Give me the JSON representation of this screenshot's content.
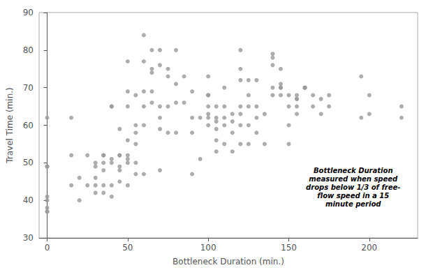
{
  "chart_data": {
    "type": "scatter",
    "xlabel": "Bottleneck Duration (min.)",
    "ylabel": "Travel Time (min.)",
    "xlim": [
      -5,
      230
    ],
    "ylim": [
      30,
      90
    ],
    "xticks": [
      0,
      50,
      100,
      150,
      200
    ],
    "yticks": [
      30,
      40,
      50,
      60,
      70,
      80,
      90
    ],
    "grid": false,
    "color": "#999999",
    "annotation": {
      "text": "Bottleneck Duration\nmeasured when speed\ndrops below 1/3 of free-\nflow speed in a 15\nminute period",
      "x": 190,
      "y": 49
    },
    "x": [
      0,
      0,
      0,
      0,
      0,
      0,
      0,
      0,
      15,
      15,
      15,
      20,
      20,
      25,
      25,
      30,
      30,
      30,
      30,
      30,
      35,
      35,
      35,
      35,
      35,
      35,
      40,
      40,
      40,
      40,
      40,
      40,
      45,
      45,
      45,
      45,
      45,
      45,
      50,
      50,
      50,
      50,
      50,
      50,
      50,
      50,
      55,
      55,
      55,
      55,
      55,
      55,
      60,
      60,
      60,
      60,
      60,
      60,
      65,
      65,
      65,
      65,
      65,
      70,
      70,
      70,
      70,
      70,
      70,
      75,
      75,
      75,
      75,
      80,
      80,
      80,
      80,
      85,
      85,
      90,
      90,
      90,
      90,
      95,
      95,
      100,
      100,
      100,
      100,
      100,
      100,
      100,
      105,
      105,
      105,
      105,
      105,
      105,
      110,
      110,
      110,
      110,
      110,
      115,
      115,
      115,
      115,
      120,
      120,
      120,
      120,
      120,
      120,
      120,
      125,
      125,
      125,
      125,
      125,
      130,
      130,
      130,
      130,
      135,
      135,
      140,
      140,
      140,
      140,
      140,
      145,
      145,
      145,
      145,
      145,
      150,
      150,
      150,
      150,
      155,
      155,
      155,
      155,
      155,
      160,
      160,
      160,
      165,
      165,
      170,
      170,
      175,
      175,
      195,
      195,
      200,
      200,
      220,
      220
    ],
    "values": [
      62,
      49,
      49,
      41,
      40,
      38,
      37,
      37,
      62,
      52,
      44,
      46,
      40,
      52,
      44,
      50,
      49,
      46,
      44,
      42,
      52,
      52,
      50,
      48,
      44,
      42,
      65,
      65,
      51,
      50,
      44,
      41,
      59,
      52,
      52,
      49,
      48,
      45,
      77,
      69,
      65,
      56,
      52,
      51,
      50,
      44,
      68,
      60,
      58,
      55,
      50,
      47,
      84,
      77,
      69,
      65,
      60,
      47,
      80,
      75,
      74,
      69,
      66,
      80,
      76,
      65,
      62,
      59,
      48,
      75,
      73,
      65,
      58,
      80,
      71,
      66,
      58,
      73,
      66,
      69,
      62,
      58,
      47,
      62,
      51,
      73,
      68,
      68,
      65,
      63,
      62,
      60,
      65,
      62,
      61,
      59,
      56,
      53,
      70,
      65,
      62,
      60,
      55,
      63,
      61,
      58,
      53,
      80,
      75,
      72,
      65,
      63,
      60,
      55,
      72,
      68,
      65,
      60,
      55,
      72,
      65,
      62,
      58,
      63,
      55,
      79,
      78,
      76,
      70,
      68,
      75,
      71,
      70,
      70,
      68,
      68,
      65,
      60,
      55,
      68,
      67,
      67,
      65,
      63,
      70,
      70,
      70,
      68,
      65,
      67,
      63,
      68,
      65,
      73,
      62,
      68,
      63,
      65,
      62
    ]
  }
}
